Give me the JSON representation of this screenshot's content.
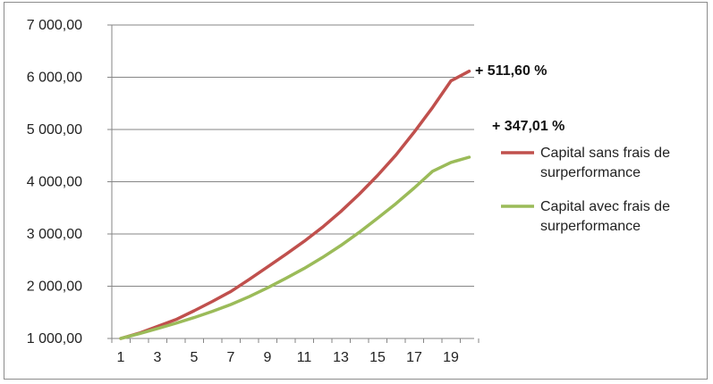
{
  "chart_data": {
    "type": "line",
    "x": [
      1,
      2,
      3,
      4,
      5,
      6,
      7,
      8,
      9,
      10,
      11,
      12,
      13,
      14,
      15,
      16,
      17,
      18,
      19,
      20
    ],
    "x_tick_labels": [
      "1",
      "3",
      "5",
      "7",
      "9",
      "11",
      "13",
      "15",
      "17",
      "19"
    ],
    "y_tick_labels": [
      "1 000,00",
      "2 000,00",
      "3 000,00",
      "4 000,00",
      "5 000,00",
      "6 000,00",
      "7 000,00"
    ],
    "ylim": [
      1000,
      7000
    ],
    "grid": "horizontal",
    "legend_position": "right",
    "series": [
      {
        "name": "Capital sans frais de surperformance",
        "color": "#c0504d",
        "values": [
          1000,
          1100,
          1230,
          1360,
          1530,
          1710,
          1900,
          2130,
          2370,
          2610,
          2860,
          3130,
          3430,
          3760,
          4120,
          4510,
          4950,
          5420,
          5930,
          6116
        ]
      },
      {
        "name": "Capital  avec frais de surperformance",
        "color": "#9bbb59",
        "values": [
          1000,
          1090,
          1190,
          1290,
          1400,
          1520,
          1650,
          1800,
          1970,
          2150,
          2340,
          2550,
          2780,
          3030,
          3300,
          3580,
          3880,
          4200,
          4370,
          4470
        ]
      }
    ],
    "annotations": [
      {
        "text": "+ 511,60 %",
        "series": 0
      },
      {
        "text": "+ 347,01 %",
        "series": 1
      }
    ],
    "legend_labels": [
      [
        "Capital sans frais de",
        "surperformance"
      ],
      [
        "Capital  avec frais de",
        "surperformance"
      ]
    ]
  }
}
